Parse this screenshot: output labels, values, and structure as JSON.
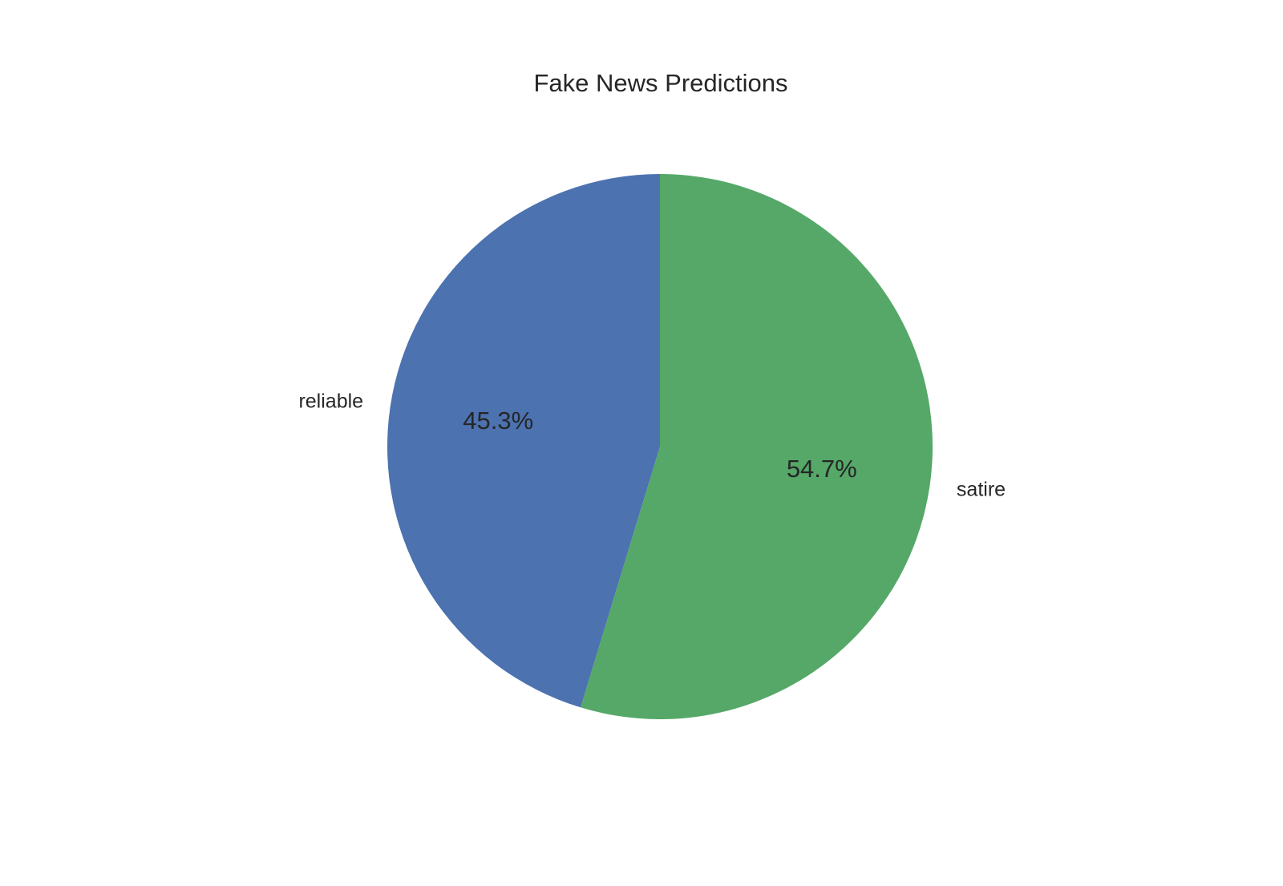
{
  "chart_data": {
    "type": "pie",
    "title": "Fake News Predictions",
    "categories": [
      "reliable",
      "satire"
    ],
    "values": [
      45.3,
      54.7
    ],
    "value_labels": [
      "45.3%",
      "54.7%"
    ],
    "colors": [
      "#4c72b0",
      "#55a868"
    ],
    "start_angle_deg": 90,
    "direction": "counterclockwise",
    "legend": "none"
  }
}
